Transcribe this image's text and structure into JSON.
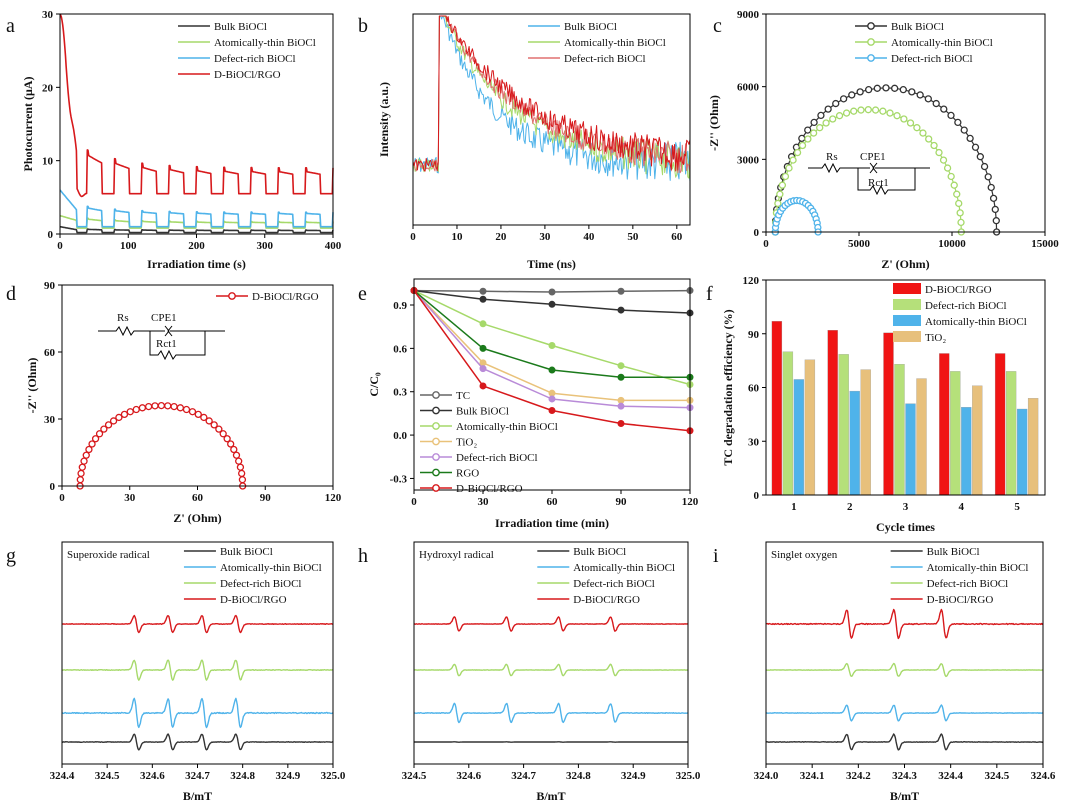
{
  "colors": {
    "bulk": "#333333",
    "atomic": "#a6d96a",
    "defect": "#4fb3ea",
    "dbioc": "#d7191c",
    "tc": "#555555",
    "tio2": "#e9c27a",
    "defect_e": "#b98bd8",
    "rgo": "#1b7a1b",
    "bar_red": "#f01414",
    "bar_green": "#b5e07a",
    "bar_blue": "#4fb3ea",
    "bar_tan": "#e7c07c"
  },
  "chart_data": [
    {
      "panel": "a",
      "type": "line",
      "xlabel": "Irradiation time (s)",
      "ylabel": "Photocurrent (μA)",
      "xlim": [
        0,
        400
      ],
      "ylim": [
        0,
        30
      ],
      "xticks": [
        0,
        100,
        200,
        300,
        400
      ],
      "yticks": [
        0,
        10,
        20,
        30
      ],
      "on_off_period_s": 40,
      "legend_position": "top-right",
      "series": [
        {
          "name": "Bulk BiOCl",
          "on": 0.5,
          "off": 0.2,
          "initial": 1.0
        },
        {
          "name": "Atomically-thin BiOCl",
          "on": 1.6,
          "off": 0.8,
          "initial": 2.5
        },
        {
          "name": "Defect-rich BiOCl",
          "on": 2.8,
          "off": 1.0,
          "initial": 6.0
        },
        {
          "name": "D-BiOCl/RGO",
          "on": 8.5,
          "off": 5.5,
          "initial": 30.0
        }
      ]
    },
    {
      "panel": "b",
      "type": "line",
      "xlabel": "Time (ns)",
      "ylabel": "Intensity (a.u.)",
      "xlim": [
        0,
        63
      ],
      "xticks": [
        0,
        10,
        20,
        30,
        40,
        50,
        60
      ],
      "pulse_time_ns": 6,
      "legend_position": "top-right",
      "series": [
        {
          "name": "Bulk BiOCl",
          "decay_tau_ns": 12
        },
        {
          "name": "Atomically-thin BiOCl",
          "decay_tau_ns": 16
        },
        {
          "name": "Defect-rich BiOCl",
          "decay_tau_ns": 18
        }
      ],
      "extra_series_color_only": "D-BiOCl/RGO (red, not in legend)"
    },
    {
      "panel": "c",
      "type": "scatter",
      "xlabel": "Z' (Ohm)",
      "ylabel": "-Z'' (Ohm)",
      "xlim": [
        0,
        15000
      ],
      "ylim": [
        0,
        9000
      ],
      "xticks": [
        0,
        5000,
        10000,
        15000
      ],
      "yticks": [
        0,
        3000,
        6000,
        9000
      ],
      "legend_position": "top-right",
      "circuit_labels": [
        "Rs",
        "CPE1",
        "Rct1"
      ],
      "series": [
        {
          "name": "Bulk BiOCl",
          "arc_start": 500,
          "arc_end": 12400,
          "peak": 5950
        },
        {
          "name": "Atomically-thin BiOCl",
          "arc_start": 500,
          "arc_end": 10500,
          "peak": 5050
        },
        {
          "name": "Defect-rich BiOCl",
          "arc_start": 500,
          "arc_end": 2800,
          "peak": 1300
        }
      ]
    },
    {
      "panel": "d",
      "type": "scatter",
      "xlabel": "Z' (Ohm)",
      "ylabel": "-Z'' (Ohm)",
      "xlim": [
        0,
        120
      ],
      "ylim": [
        0,
        90
      ],
      "xticks": [
        0,
        30,
        60,
        90,
        120
      ],
      "yticks": [
        0,
        30,
        60,
        90
      ],
      "legend_position": "top-right",
      "circuit_labels": [
        "Rs",
        "CPE1",
        "Rct1"
      ],
      "series": [
        {
          "name": "D-BiOCl/RGO",
          "arc_start": 8,
          "arc_end": 80,
          "peak": 36
        }
      ]
    },
    {
      "panel": "e",
      "type": "line",
      "xlabel": "Irradiation time (min)",
      "ylabel": "C/C₀",
      "xlim": [
        0,
        120
      ],
      "ylim": [
        -0.38,
        1.08
      ],
      "xticks": [
        0,
        30,
        60,
        90,
        120
      ],
      "yticks": [
        -0.3,
        0.0,
        0.3,
        0.6,
        0.9
      ],
      "legend_position": "bottom-left",
      "x": [
        0,
        30,
        60,
        90,
        120
      ],
      "series": [
        {
          "name": "TC",
          "values": [
            1.0,
            0.995,
            0.99,
            0.995,
            1.0
          ]
        },
        {
          "name": "Bulk BiOCl",
          "values": [
            1.0,
            0.94,
            0.905,
            0.865,
            0.845
          ]
        },
        {
          "name": "Atomically-thin BiOCl",
          "values": [
            1.0,
            0.77,
            0.62,
            0.48,
            0.35
          ]
        },
        {
          "name": "TiO₂",
          "values": [
            1.0,
            0.5,
            0.29,
            0.24,
            0.24
          ]
        },
        {
          "name": "Defect-rich BiOCl",
          "values": [
            1.0,
            0.46,
            0.25,
            0.2,
            0.19
          ]
        },
        {
          "name": "RGO",
          "values": [
            1.0,
            0.6,
            0.45,
            0.4,
            0.4
          ]
        },
        {
          "name": "D-BiOCl/RGO",
          "values": [
            1.0,
            0.34,
            0.17,
            0.08,
            0.03
          ]
        }
      ]
    },
    {
      "panel": "f",
      "type": "bar",
      "xlabel": "Cycle times",
      "ylabel": "TC degradation efficiency (%)",
      "ylim": [
        0,
        120
      ],
      "yticks": [
        0,
        30,
        60,
        90,
        120
      ],
      "categories": [
        "1",
        "2",
        "3",
        "4",
        "5"
      ],
      "legend_position": "top-right",
      "series": [
        {
          "name": "D-BiOCl/RGO",
          "values": [
            97,
            92,
            90.5,
            79,
            79
          ]
        },
        {
          "name": "Defect-rich BiOCl",
          "values": [
            80,
            78.5,
            73,
            69,
            69
          ]
        },
        {
          "name": "Atomically-thin BiOCl",
          "values": [
            64.5,
            58,
            51,
            49,
            48
          ]
        },
        {
          "name": "TiO₂",
          "values": [
            75.5,
            70,
            65,
            61,
            54
          ]
        }
      ]
    },
    {
      "panel": "g",
      "type": "line",
      "title": "Superoxide radical",
      "xlabel": "B/mT",
      "xlim": [
        324.4,
        325.0
      ],
      "xticks": [
        "324.4",
        "324.5",
        "324.6",
        "324.7",
        "324.8",
        "324.9",
        "325.0"
      ],
      "line_centers": [
        324.565,
        324.64,
        324.715,
        324.79
      ],
      "legend_position": "top-right",
      "series": [
        {
          "name": "Bulk BiOCl",
          "amplitude": 0.55
        },
        {
          "name": "Atomically-thin BiOCl",
          "amplitude": 0.7
        },
        {
          "name": "Defect-rich BiOCl",
          "amplitude": 1.0
        },
        {
          "name": "D-BiOCl/RGO",
          "amplitude": 0.6
        }
      ]
    },
    {
      "panel": "h",
      "type": "line",
      "title": "Hydroxyl radical",
      "xlabel": "B/mT",
      "xlim": [
        324.5,
        325.0
      ],
      "xticks": [
        "324.5",
        "324.6",
        "324.7",
        "324.8",
        "324.9",
        "325.0"
      ],
      "line_centers": [
        324.578,
        324.673,
        324.768,
        324.863
      ],
      "legend_position": "top-right",
      "series": [
        {
          "name": "Bulk BiOCl",
          "amplitude": 0.02
        },
        {
          "name": "Atomically-thin BiOCl",
          "amplitude": 0.6
        },
        {
          "name": "Defect-rich BiOCl",
          "amplitude": 1.0
        },
        {
          "name": "D-BiOCl/RGO",
          "amplitude": 0.75
        }
      ]
    },
    {
      "panel": "i",
      "type": "line",
      "title": "Singlet oxygen",
      "xlabel": "B/mT",
      "xlim": [
        324.0,
        324.6
      ],
      "xticks": [
        "324.0",
        "324.1",
        "324.2",
        "324.3",
        "324.4",
        "324.5",
        "324.6"
      ],
      "line_centers": [
        324.18,
        324.282,
        324.385
      ],
      "legend_position": "top-right",
      "series": [
        {
          "name": "Bulk BiOCl",
          "amplitude": 0.55
        },
        {
          "name": "Atomically-thin BiOCl",
          "amplitude": 0.45
        },
        {
          "name": "Defect-rich BiOCl",
          "amplitude": 0.55
        },
        {
          "name": "D-BiOCl/RGO",
          "amplitude": 1.0
        }
      ]
    }
  ]
}
